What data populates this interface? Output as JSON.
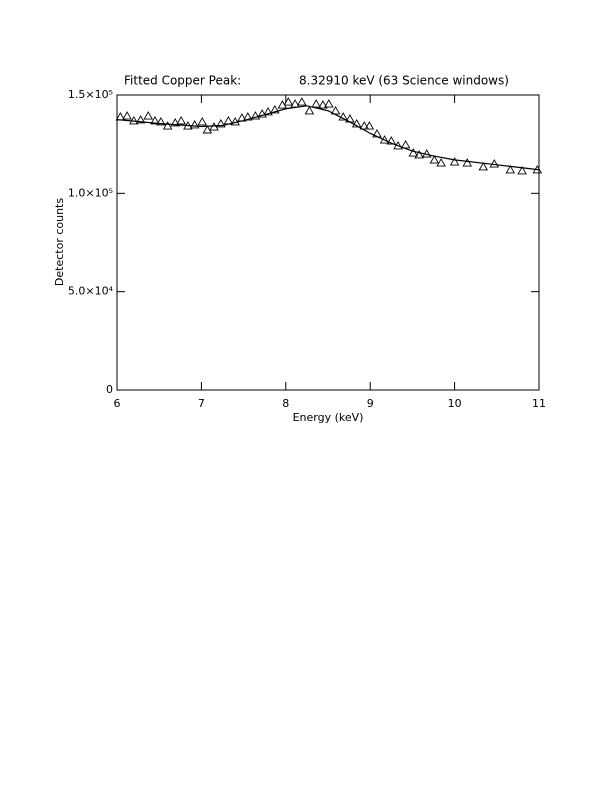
{
  "chart_data": {
    "type": "scatter",
    "title": "Fitted Copper Peak:",
    "annotation": "8.32910 keV (63 Science windows)",
    "xlabel": "Energy (keV)",
    "ylabel": "Detector counts",
    "xlim": [
      6,
      11
    ],
    "ylim": [
      0,
      150000
    ],
    "xticks": [
      6,
      7,
      8,
      9,
      10,
      11
    ],
    "yticks": [
      0,
      {
        "value": 50000,
        "label": "5.0×10⁴"
      },
      {
        "value": 100000,
        "label": "1.0×10⁵"
      },
      {
        "value": 150000,
        "label": "1.5×10⁵"
      }
    ],
    "color": "#000000",
    "series": [
      {
        "style": "triangle",
        "x": [
          6.04,
          6.12,
          6.2,
          6.28,
          6.37,
          6.45,
          6.52,
          6.6,
          6.69,
          6.76,
          6.84,
          6.92,
          7.01,
          7.07,
          7.15,
          7.23,
          7.32,
          7.4,
          7.48,
          7.55,
          7.64,
          7.72,
          7.79,
          7.87,
          7.96,
          8.03,
          8.11,
          8.19,
          8.28,
          8.36,
          8.44,
          8.51,
          8.59,
          8.68,
          8.76,
          8.84,
          8.93,
          8.99,
          9.08,
          9.17,
          9.25,
          9.33,
          9.42,
          9.51,
          9.58,
          9.67,
          9.76,
          9.84,
          10.0,
          10.15,
          10.34,
          10.47,
          10.66,
          10.8,
          10.98
        ],
        "values": [
          138800,
          139300,
          136800,
          137300,
          139300,
          136800,
          136300,
          134200,
          135800,
          136800,
          134200,
          134800,
          136300,
          132200,
          133700,
          135300,
          136800,
          136300,
          138300,
          138800,
          139300,
          140300,
          141400,
          142400,
          144900,
          146400,
          145400,
          146400,
          141900,
          145400,
          144900,
          145400,
          141900,
          138800,
          137800,
          135300,
          134200,
          134200,
          130200,
          127100,
          126600,
          124100,
          124600,
          120500,
          119500,
          120000,
          116900,
          115400,
          115900,
          115400,
          113400,
          114900,
          111900,
          111400,
          111900
        ]
      },
      {
        "style": "line",
        "x": [
          6,
          6.5,
          7,
          7.25,
          7.5,
          7.75,
          8,
          8.25,
          8.5,
          8.75,
          9,
          9.25,
          9.5,
          9.75,
          10,
          10.5,
          11
        ],
        "values": [
          137500,
          135500,
          134000,
          134500,
          137000,
          140000,
          143000,
          144500,
          142000,
          136500,
          130500,
          125500,
          121500,
          119000,
          117000,
          114500,
          112000
        ]
      }
    ]
  }
}
